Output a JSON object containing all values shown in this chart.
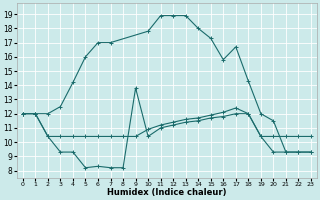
{
  "xlabel": "Humidex (Indice chaleur)",
  "background_color": "#cceaea",
  "grid_color": "#ffffff",
  "line_color": "#1a6b6b",
  "xlim": [
    -0.5,
    23.5
  ],
  "ylim": [
    7.5,
    19.8
  ],
  "xticks": [
    0,
    1,
    2,
    3,
    4,
    5,
    6,
    7,
    8,
    9,
    10,
    11,
    12,
    13,
    14,
    15,
    16,
    17,
    18,
    19,
    20,
    21,
    22,
    23
  ],
  "yticks": [
    8,
    9,
    10,
    11,
    12,
    13,
    14,
    15,
    16,
    17,
    18,
    19
  ],
  "line3_x": [
    0,
    1,
    2,
    3,
    4,
    5,
    6,
    7,
    10,
    11,
    12,
    13,
    14,
    15,
    16,
    17,
    18,
    19,
    20,
    21,
    22,
    23
  ],
  "line3_y": [
    12,
    12,
    12,
    12.5,
    14.2,
    16.0,
    17.0,
    17.0,
    17.8,
    18.9,
    18.9,
    18.9,
    18.0,
    17.3,
    15.8,
    16.7,
    14.3,
    12.0,
    11.5,
    9.3,
    9.3,
    9.3
  ],
  "line2_x": [
    0,
    1,
    2,
    3,
    4,
    5,
    6,
    7,
    8,
    9,
    10,
    11,
    12,
    13,
    14,
    15,
    16,
    17,
    18,
    19,
    20,
    21,
    22,
    23
  ],
  "line2_y": [
    12,
    12,
    10.4,
    10.4,
    10.4,
    10.4,
    10.4,
    10.4,
    10.4,
    10.4,
    10.9,
    11.2,
    11.4,
    11.6,
    11.7,
    11.9,
    12.1,
    12.4,
    12.0,
    10.4,
    10.4,
    10.4,
    10.4,
    10.4
  ],
  "line1_x": [
    0,
    1,
    2,
    3,
    4,
    5,
    6,
    7,
    8,
    9,
    10,
    11,
    12,
    13,
    14,
    15,
    16,
    17,
    18,
    19,
    20,
    21,
    22,
    23
  ],
  "line1_y": [
    12,
    12,
    10.4,
    9.3,
    9.3,
    8.2,
    8.3,
    8.2,
    8.2,
    13.8,
    10.4,
    11.0,
    11.2,
    11.4,
    11.5,
    11.7,
    11.8,
    12.0,
    12.0,
    10.4,
    9.3,
    9.3,
    9.3,
    9.3
  ]
}
